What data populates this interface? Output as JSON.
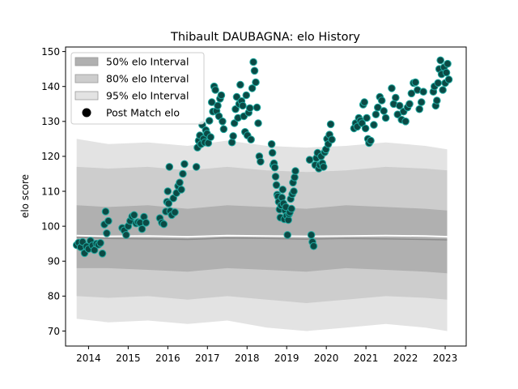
{
  "chart_data": {
    "type": "scatter",
    "title": "Thibault DAUBAGNA: elo History",
    "xlabel": "",
    "ylabel": "elo score",
    "xlim": [
      2013.42,
      2023.53
    ],
    "ylim": [
      65.7,
      151.3
    ],
    "x_ticks": [
      2014,
      2015,
      2016,
      2017,
      2018,
      2019,
      2020,
      2021,
      2022,
      2023
    ],
    "x_tick_labels": [
      "2014",
      "2015",
      "2016",
      "2017",
      "2018",
      "2019",
      "2020",
      "2021",
      "2022",
      "2023"
    ],
    "y_ticks": [
      70,
      80,
      90,
      100,
      110,
      120,
      130,
      140,
      150
    ],
    "y_tick_labels": [
      "70",
      "80",
      "90",
      "100",
      "110",
      "120",
      "130",
      "140",
      "150"
    ],
    "grid": false,
    "legend_position": "upper-left",
    "legend": [
      {
        "label": "50% elo Interval",
        "color": "#b0b0b0",
        "kind": "patch"
      },
      {
        "label": "80% elo Interval",
        "color": "#cdcdcd",
        "kind": "patch"
      },
      {
        "label": "95% elo Interval",
        "color": "#e3e3e3",
        "kind": "patch"
      },
      {
        "label": "Post Match elo",
        "color": "#000000",
        "kind": "marker"
      }
    ],
    "colors": {
      "band_95": "#e3e3e3",
      "band_80": "#cdcdcd",
      "band_50": "#b0b0b0",
      "mean_line": "#ffffff",
      "median_line": "#8c8c8c",
      "marker_fill": "#0b4a45",
      "marker_edge": "#1fa9a0"
    },
    "bands": {
      "x": [
        2013.7,
        2014.5,
        2015.5,
        2016.5,
        2017.5,
        2018.5,
        2019.5,
        2020.5,
        2021.5,
        2022.5,
        2023.05
      ],
      "p95_low": [
        73.5,
        72.5,
        73,
        72,
        73,
        71,
        70,
        71,
        72,
        71,
        70
      ],
      "p95_high": [
        125,
        123.5,
        124,
        123,
        124.5,
        123,
        122.5,
        123,
        124,
        123,
        122
      ],
      "p80_low": [
        80,
        79.5,
        80,
        79,
        80,
        79,
        78,
        79,
        80,
        79.5,
        79
      ],
      "p80_high": [
        117,
        116.5,
        117,
        116,
        117,
        116,
        115.5,
        116,
        117,
        116.5,
        116
      ],
      "p50_low": [
        88,
        88,
        87.5,
        87,
        88,
        87.5,
        87,
        88,
        87.5,
        87,
        86.5
      ],
      "p50_high": [
        106,
        105.5,
        106,
        105,
        106,
        105.5,
        105,
        106,
        105.5,
        105,
        104.5
      ],
      "mean": [
        97.3,
        97.1,
        97.2,
        97.0,
        97.3,
        97.2,
        97.1,
        97.2,
        97.3,
        97.2,
        97.0
      ],
      "median": [
        96.8,
        96.5,
        96.4,
        96.2,
        96.6,
        96.5,
        96.3,
        96.5,
        96.4,
        96.2,
        96.1
      ]
    },
    "points": [
      [
        2013.7,
        94.6
      ],
      [
        2013.75,
        95.3
      ],
      [
        2013.8,
        94.0
      ],
      [
        2013.85,
        95.5
      ],
      [
        2013.9,
        92.3
      ],
      [
        2013.95,
        94.2
      ],
      [
        2014.0,
        93.5
      ],
      [
        2014.05,
        95.8
      ],
      [
        2014.1,
        94.5
      ],
      [
        2014.15,
        93.2
      ],
      [
        2014.2,
        95.0
      ],
      [
        2014.25,
        94.7
      ],
      [
        2014.3,
        95.2
      ],
      [
        2014.35,
        92.2
      ],
      [
        2014.4,
        100.5
      ],
      [
        2014.43,
        104.2
      ],
      [
        2014.46,
        98.0
      ],
      [
        2014.5,
        101.5
      ],
      [
        2014.85,
        99.5
      ],
      [
        2014.9,
        98.8
      ],
      [
        2014.95,
        97.5
      ],
      [
        2015.0,
        100.0
      ],
      [
        2015.05,
        101.5
      ],
      [
        2015.1,
        102.8
      ],
      [
        2015.15,
        103.2
      ],
      [
        2015.2,
        100.8
      ],
      [
        2015.25,
        101.2
      ],
      [
        2015.3,
        101.0
      ],
      [
        2015.35,
        99.2
      ],
      [
        2015.4,
        102.7
      ],
      [
        2015.45,
        101.0
      ],
      [
        2015.8,
        102.3
      ],
      [
        2015.85,
        101.0
      ],
      [
        2015.9,
        100.6
      ],
      [
        2015.95,
        104.2
      ],
      [
        2015.98,
        107.0
      ],
      [
        2016.0,
        110.0
      ],
      [
        2016.02,
        106.5
      ],
      [
        2016.04,
        117.0
      ],
      [
        2016.06,
        104.3
      ],
      [
        2016.1,
        103.2
      ],
      [
        2016.14,
        108.0
      ],
      [
        2016.18,
        104.0
      ],
      [
        2016.22,
        109.5
      ],
      [
        2016.26,
        111.5
      ],
      [
        2016.3,
        112.5
      ],
      [
        2016.34,
        110.5
      ],
      [
        2016.38,
        115.0
      ],
      [
        2016.42,
        117.8
      ],
      [
        2016.72,
        117.0
      ],
      [
        2016.75,
        122.5
      ],
      [
        2016.78,
        124.5
      ],
      [
        2016.81,
        126.0
      ],
      [
        2016.84,
        123.5
      ],
      [
        2016.87,
        129.0
      ],
      [
        2016.9,
        125.0
      ],
      [
        2016.93,
        124.0
      ],
      [
        2016.96,
        127.5
      ],
      [
        2016.99,
        126.5
      ],
      [
        2017.02,
        123.8
      ],
      [
        2017.05,
        130.2
      ],
      [
        2017.08,
        125.5
      ],
      [
        2017.11,
        135.5
      ],
      [
        2017.14,
        132.8
      ],
      [
        2017.17,
        140.0
      ],
      [
        2017.2,
        139.0
      ],
      [
        2017.23,
        133.0
      ],
      [
        2017.26,
        134.5
      ],
      [
        2017.29,
        131.5
      ],
      [
        2017.32,
        136.5
      ],
      [
        2017.35,
        137.5
      ],
      [
        2017.38,
        130.0
      ],
      [
        2017.41,
        127.8
      ],
      [
        2017.62,
        124.0
      ],
      [
        2017.65,
        125.8
      ],
      [
        2017.68,
        129.5
      ],
      [
        2017.71,
        133.5
      ],
      [
        2017.74,
        137.0
      ],
      [
        2017.77,
        131.0
      ],
      [
        2017.8,
        135.0
      ],
      [
        2017.83,
        140.5
      ],
      [
        2017.86,
        135.8
      ],
      [
        2017.89,
        134.5
      ],
      [
        2017.92,
        131.5
      ],
      [
        2017.95,
        127.0
      ],
      [
        2017.98,
        137.5
      ],
      [
        2018.01,
        126.0
      ],
      [
        2018.04,
        132.5
      ],
      [
        2018.07,
        133.8
      ],
      [
        2018.1,
        124.8
      ],
      [
        2018.13,
        139.5
      ],
      [
        2018.16,
        147.0
      ],
      [
        2018.19,
        144.5
      ],
      [
        2018.22,
        141.2
      ],
      [
        2018.25,
        134.0
      ],
      [
        2018.28,
        129.5
      ],
      [
        2018.31,
        120.0
      ],
      [
        2018.34,
        118.5
      ],
      [
        2018.62,
        123.5
      ],
      [
        2018.64,
        121.0
      ],
      [
        2018.66,
        117.5
      ],
      [
        2018.68,
        118.0
      ],
      [
        2018.7,
        116.8
      ],
      [
        2018.72,
        114.2
      ],
      [
        2018.74,
        111.8
      ],
      [
        2018.76,
        109.0
      ],
      [
        2018.78,
        108.5
      ],
      [
        2018.8,
        107.0
      ],
      [
        2018.82,
        104.8
      ],
      [
        2018.84,
        102.5
      ],
      [
        2018.86,
        106.0
      ],
      [
        2018.88,
        108.2
      ],
      [
        2018.9,
        110.5
      ],
      [
        2018.92,
        106.5
      ],
      [
        2018.94,
        102.0
      ],
      [
        2018.96,
        104.5
      ],
      [
        2018.98,
        105.5
      ],
      [
        2019.0,
        103.0
      ],
      [
        2019.02,
        97.5
      ],
      [
        2019.04,
        101.8
      ],
      [
        2019.06,
        103.5
      ],
      [
        2019.08,
        104.0
      ],
      [
        2019.1,
        107.8
      ],
      [
        2019.12,
        105.0
      ],
      [
        2019.14,
        109.2
      ],
      [
        2019.16,
        112.5
      ],
      [
        2019.18,
        110.0
      ],
      [
        2019.2,
        114.0
      ],
      [
        2019.22,
        115.8
      ],
      [
        2019.58,
        119.0
      ],
      [
        2019.62,
        97.5
      ],
      [
        2019.65,
        95.5
      ],
      [
        2019.68,
        94.3
      ],
      [
        2019.72,
        117.5
      ],
      [
        2019.75,
        119.5
      ],
      [
        2019.78,
        121.0
      ],
      [
        2019.81,
        116.5
      ],
      [
        2019.84,
        117.5
      ],
      [
        2019.87,
        120.0
      ],
      [
        2019.9,
        118.0
      ],
      [
        2019.93,
        117.0
      ],
      [
        2019.96,
        121.2
      ],
      [
        2019.99,
        122.0
      ],
      [
        2020.02,
        125.0
      ],
      [
        2020.05,
        123.5
      ],
      [
        2020.08,
        126.2
      ],
      [
        2020.11,
        129.2
      ],
      [
        2020.14,
        124.8
      ],
      [
        2020.7,
        128.0
      ],
      [
        2020.74,
        129.5
      ],
      [
        2020.78,
        128.5
      ],
      [
        2020.82,
        131.0
      ],
      [
        2020.86,
        130.2
      ],
      [
        2020.9,
        129.5
      ],
      [
        2020.93,
        134.8
      ],
      [
        2020.96,
        135.5
      ],
      [
        2020.99,
        128.0
      ],
      [
        2021.02,
        131.0
      ],
      [
        2021.05,
        125.0
      ],
      [
        2021.08,
        123.8
      ],
      [
        2021.12,
        124.5
      ],
      [
        2021.2,
        129.0
      ],
      [
        2021.25,
        132.0
      ],
      [
        2021.3,
        134.0
      ],
      [
        2021.35,
        137.0
      ],
      [
        2021.4,
        136.0
      ],
      [
        2021.45,
        133.0
      ],
      [
        2021.5,
        131.0
      ],
      [
        2021.65,
        139.5
      ],
      [
        2021.7,
        135.0
      ],
      [
        2021.75,
        136.8
      ],
      [
        2021.8,
        132.0
      ],
      [
        2021.85,
        134.5
      ],
      [
        2021.9,
        130.5
      ],
      [
        2021.95,
        132.8
      ],
      [
        2022.0,
        130.0
      ],
      [
        2022.05,
        134.0
      ],
      [
        2022.1,
        135.0
      ],
      [
        2022.15,
        138.0
      ],
      [
        2022.2,
        141.0
      ],
      [
        2022.25,
        141.2
      ],
      [
        2022.3,
        139.0
      ],
      [
        2022.35,
        133.5
      ],
      [
        2022.4,
        135.5
      ],
      [
        2022.45,
        138.5
      ],
      [
        2022.7,
        138.5
      ],
      [
        2022.73,
        140.0
      ],
      [
        2022.76,
        134.5
      ],
      [
        2022.79,
        136.0
      ],
      [
        2022.82,
        141.0
      ],
      [
        2022.85,
        145.0
      ],
      [
        2022.88,
        147.5
      ],
      [
        2022.91,
        143.5
      ],
      [
        2022.94,
        139.0
      ],
      [
        2022.97,
        145.5
      ],
      [
        2023.0,
        141.0
      ],
      [
        2023.03,
        144.0
      ],
      [
        2023.06,
        146.5
      ],
      [
        2023.09,
        142.0
      ]
    ]
  }
}
